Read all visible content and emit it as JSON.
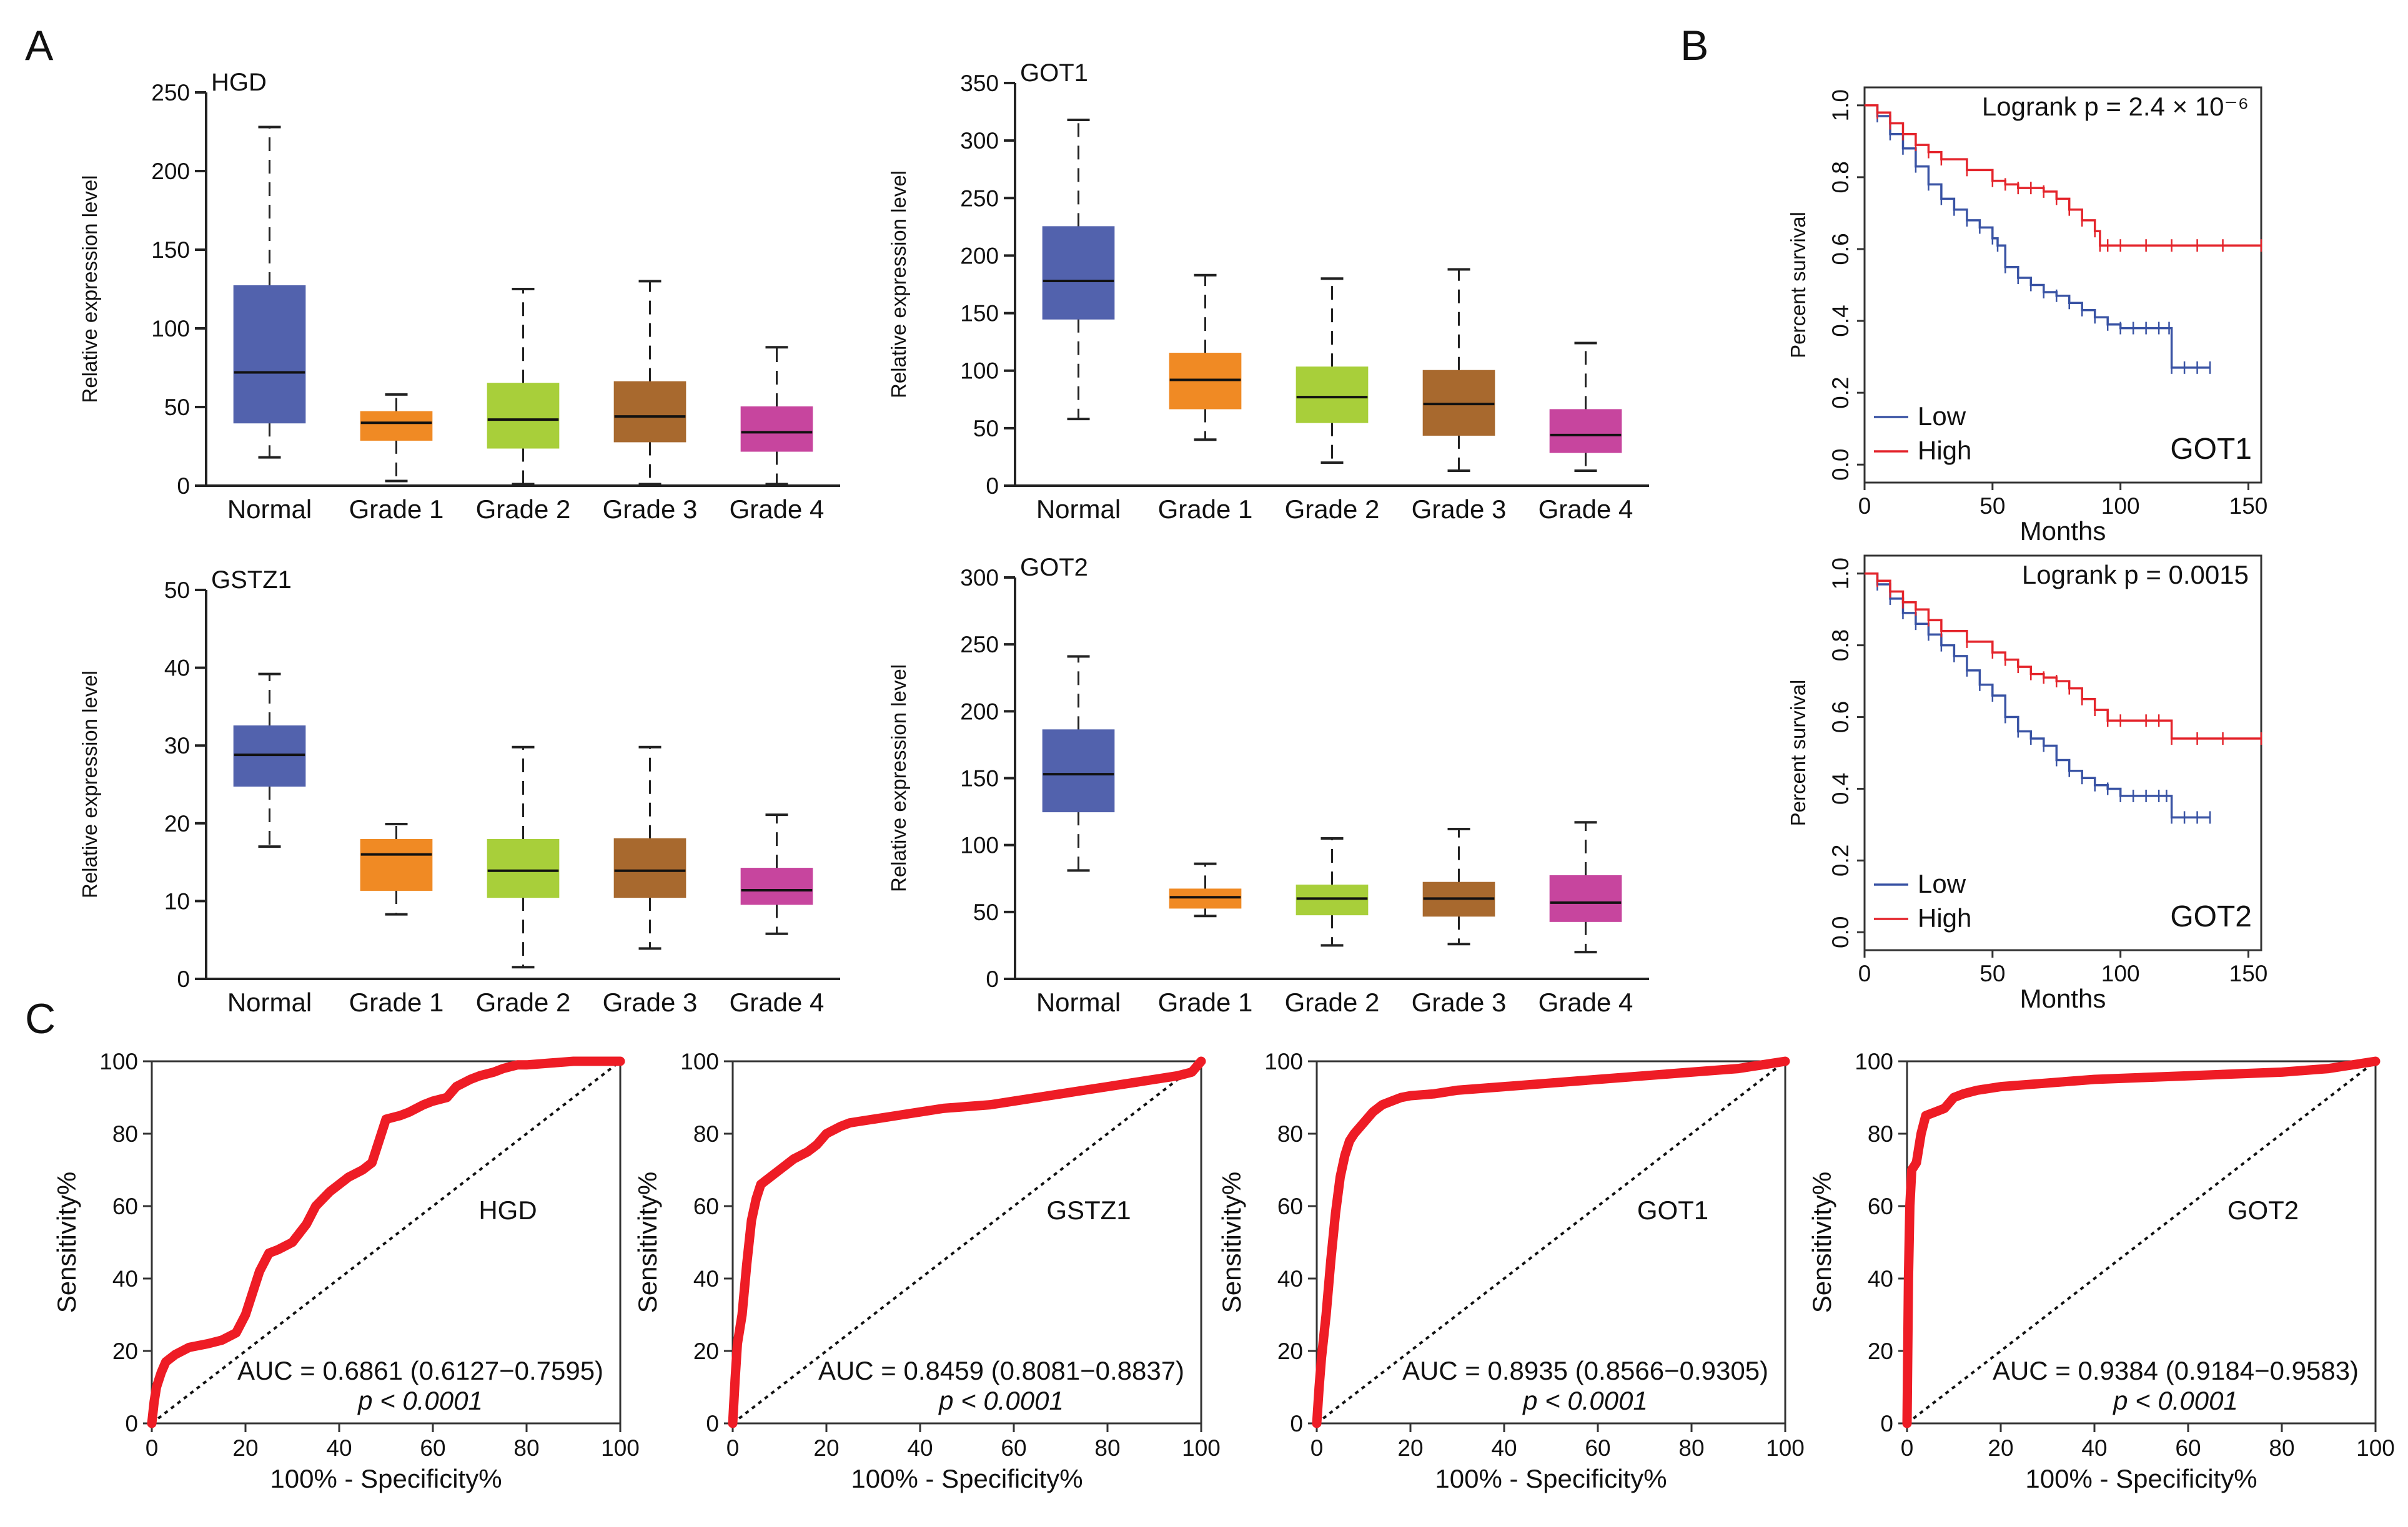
{
  "figure": {
    "panels": {
      "A": "A",
      "B": "B",
      "C": "C"
    }
  },
  "chart_data": [
    {
      "type": "box",
      "id": "boxHGD",
      "title": "HGD",
      "ylabel": "Relative expression level",
      "categories": [
        "Normal",
        "Grade 1",
        "Grade 2",
        "Grade 3",
        "Grade 4"
      ],
      "ylim": [
        0,
        250
      ],
      "yticks": [
        0,
        50,
        100,
        150,
        200,
        250
      ],
      "colors": [
        "#5262ad",
        "#f08a24",
        "#a8cf3a",
        "#a8692e",
        "#c7459e"
      ],
      "boxes": [
        {
          "min": 18,
          "q1": 40,
          "median": 72,
          "q3": 127,
          "max": 228
        },
        {
          "min": 3,
          "q1": 29,
          "median": 40,
          "q3": 47,
          "max": 58
        },
        {
          "min": 1,
          "q1": 24,
          "median": 42,
          "q3": 65,
          "max": 125
        },
        {
          "min": 1,
          "q1": 28,
          "median": 44,
          "q3": 66,
          "max": 130
        },
        {
          "min": 1,
          "q1": 22,
          "median": 34,
          "q3": 50,
          "max": 88
        }
      ]
    },
    {
      "type": "box",
      "id": "boxGOT1",
      "title": "GOT1",
      "ylabel": "Relative expression level",
      "categories": [
        "Normal",
        "Grade 1",
        "Grade 2",
        "Grade 3",
        "Grade 4"
      ],
      "ylim": [
        0,
        350
      ],
      "yticks": [
        0,
        50,
        100,
        150,
        200,
        250,
        300,
        350
      ],
      "colors": [
        "#5262ad",
        "#f08a24",
        "#a8cf3a",
        "#a8692e",
        "#c7459e"
      ],
      "boxes": [
        {
          "min": 58,
          "q1": 145,
          "median": 178,
          "q3": 225,
          "max": 318
        },
        {
          "min": 40,
          "q1": 67,
          "median": 92,
          "q3": 115,
          "max": 183
        },
        {
          "min": 20,
          "q1": 55,
          "median": 77,
          "q3": 103,
          "max": 180
        },
        {
          "min": 13,
          "q1": 44,
          "median": 71,
          "q3": 100,
          "max": 188
        },
        {
          "min": 13,
          "q1": 29,
          "median": 44,
          "q3": 66,
          "max": 124
        }
      ]
    },
    {
      "type": "box",
      "id": "boxGSTZ1",
      "title": "GSTZ1",
      "ylabel": "Relative expression level",
      "categories": [
        "Normal",
        "Grade 1",
        "Grade 2",
        "Grade 3",
        "Grade 4"
      ],
      "ylim": [
        0,
        50
      ],
      "yticks": [
        0,
        10,
        20,
        30,
        40,
        50
      ],
      "colors": [
        "#5262ad",
        "#f08a24",
        "#a8cf3a",
        "#a8692e",
        "#c7459e"
      ],
      "boxes": [
        {
          "min": 17,
          "q1": 24.8,
          "median": 28.8,
          "q3": 32.5,
          "max": 39.2
        },
        {
          "min": 8.3,
          "q1": 11.4,
          "median": 16,
          "q3": 17.9,
          "max": 19.9
        },
        {
          "min": 1.5,
          "q1": 10.5,
          "median": 13.9,
          "q3": 17.9,
          "max": 29.8
        },
        {
          "min": 3.9,
          "q1": 10.5,
          "median": 13.9,
          "q3": 18,
          "max": 29.8
        },
        {
          "min": 5.8,
          "q1": 9.6,
          "median": 11.4,
          "q3": 14.2,
          "max": 21.1
        }
      ]
    },
    {
      "type": "box",
      "id": "boxGOT2",
      "title": "GOT2",
      "ylabel": "Relative expression level",
      "categories": [
        "Normal",
        "Grade 1",
        "Grade 2",
        "Grade 3",
        "Grade 4"
      ],
      "ylim": [
        0,
        300
      ],
      "yticks": [
        0,
        50,
        100,
        150,
        200,
        250,
        300
      ],
      "colors": [
        "#5262ad",
        "#f08a24",
        "#a8cf3a",
        "#a8692e",
        "#c7459e"
      ],
      "boxes": [
        {
          "min": 81,
          "q1": 125,
          "median": 153,
          "q3": 186,
          "max": 241
        },
        {
          "min": 47,
          "q1": 53,
          "median": 61,
          "q3": 67,
          "max": 86
        },
        {
          "min": 25,
          "q1": 48,
          "median": 60,
          "q3": 70,
          "max": 105
        },
        {
          "min": 26,
          "q1": 47,
          "median": 60,
          "q3": 72,
          "max": 112
        },
        {
          "min": 20,
          "q1": 43,
          "median": 57,
          "q3": 77,
          "max": 117
        }
      ]
    },
    {
      "type": "line",
      "id": "kmGOT1",
      "subtype": "kaplan-meier",
      "gene": "GOT1",
      "stat_text": "Logrank p = 2.4 × 10⁻⁶",
      "xlabel": "Months",
      "ylabel": "Percent survival",
      "xlim": [
        0,
        155
      ],
      "ylim": [
        -0.05,
        1.05
      ],
      "xticks": [
        0,
        50,
        100,
        150
      ],
      "yticks": [
        0.0,
        0.2,
        0.4,
        0.6,
        0.8,
        1.0
      ],
      "legend": [
        "Low",
        "High"
      ],
      "legend_position": "bottom-left",
      "series": [
        {
          "name": "Low",
          "color": "#3953a4",
          "x": [
            0,
            5,
            10,
            15,
            20,
            25,
            30,
            35,
            40,
            45,
            50,
            52,
            55,
            60,
            65,
            70,
            75,
            80,
            85,
            90,
            95,
            100,
            105,
            110,
            115,
            119,
            120,
            125,
            130,
            135
          ],
          "y": [
            1.0,
            0.97,
            0.92,
            0.88,
            0.83,
            0.78,
            0.74,
            0.71,
            0.68,
            0.66,
            0.63,
            0.61,
            0.55,
            0.52,
            0.5,
            0.48,
            0.47,
            0.45,
            0.43,
            0.41,
            0.39,
            0.38,
            0.38,
            0.38,
            0.38,
            0.38,
            0.27,
            0.27,
            0.27,
            0.27
          ]
        },
        {
          "name": "High",
          "color": "#e4242b",
          "x": [
            0,
            5,
            10,
            15,
            20,
            25,
            30,
            40,
            50,
            55,
            60,
            65,
            70,
            75,
            80,
            85,
            90,
            92,
            95,
            100,
            110,
            120,
            130,
            140,
            155
          ],
          "y": [
            1.0,
            0.98,
            0.95,
            0.92,
            0.89,
            0.87,
            0.85,
            0.82,
            0.79,
            0.78,
            0.77,
            0.77,
            0.76,
            0.74,
            0.71,
            0.68,
            0.65,
            0.61,
            0.61,
            0.61,
            0.61,
            0.61,
            0.61,
            0.61,
            0.61
          ]
        }
      ]
    },
    {
      "type": "line",
      "id": "kmGOT2",
      "subtype": "kaplan-meier",
      "gene": "GOT2",
      "stat_text": "Logrank p = 0.0015",
      "xlabel": "Months",
      "ylabel": "Percent survival",
      "xlim": [
        0,
        155
      ],
      "ylim": [
        -0.05,
        1.05
      ],
      "xticks": [
        0,
        50,
        100,
        150
      ],
      "yticks": [
        0.0,
        0.2,
        0.4,
        0.6,
        0.8,
        1.0
      ],
      "legend": [
        "Low",
        "High"
      ],
      "legend_position": "bottom-left",
      "series": [
        {
          "name": "Low",
          "color": "#3953a4",
          "x": [
            0,
            5,
            10,
            15,
            20,
            25,
            30,
            35,
            40,
            45,
            50,
            55,
            60,
            65,
            70,
            75,
            80,
            85,
            90,
            95,
            100,
            105,
            110,
            115,
            118,
            120,
            125,
            130,
            135
          ],
          "y": [
            1.0,
            0.97,
            0.93,
            0.89,
            0.86,
            0.83,
            0.8,
            0.77,
            0.73,
            0.69,
            0.66,
            0.6,
            0.56,
            0.54,
            0.52,
            0.48,
            0.45,
            0.43,
            0.41,
            0.4,
            0.38,
            0.38,
            0.38,
            0.38,
            0.38,
            0.32,
            0.32,
            0.32,
            0.32
          ]
        },
        {
          "name": "High",
          "color": "#e4242b",
          "x": [
            0,
            5,
            10,
            15,
            20,
            25,
            30,
            40,
            50,
            55,
            60,
            65,
            70,
            75,
            80,
            85,
            90,
            95,
            100,
            110,
            115,
            120,
            130,
            140,
            155
          ],
          "y": [
            1.0,
            0.98,
            0.95,
            0.92,
            0.9,
            0.87,
            0.84,
            0.81,
            0.78,
            0.76,
            0.74,
            0.72,
            0.71,
            0.7,
            0.68,
            0.65,
            0.62,
            0.59,
            0.59,
            0.59,
            0.59,
            0.54,
            0.54,
            0.54,
            0.54
          ]
        }
      ]
    },
    {
      "type": "line",
      "id": "rocHGD",
      "subtype": "roc",
      "gene": "HGD",
      "auc_text": "AUC = 0.6861 (0.6127−0.7595)",
      "p_text": "p < 0.0001",
      "xlabel": "100% - Specificity%",
      "ylabel": "Sensitivity%",
      "xlim": [
        0,
        100
      ],
      "ylim": [
        0,
        100
      ],
      "xticks": [
        0,
        20,
        40,
        60,
        80,
        100
      ],
      "yticks": [
        0,
        20,
        40,
        60,
        80,
        100
      ],
      "curve_color": "#ee1c25",
      "x": [
        0,
        0.5,
        1,
        2,
        3,
        5,
        8,
        12,
        15,
        18,
        20,
        22,
        23,
        25,
        27,
        30,
        33,
        35,
        38,
        40,
        42,
        45,
        47,
        48,
        49,
        50,
        53,
        55,
        58,
        60,
        63,
        65,
        68,
        70,
        73,
        75,
        78,
        80,
        85,
        90,
        95,
        100
      ],
      "y": [
        0,
        6,
        10,
        14,
        17,
        19,
        21,
        22,
        23,
        25,
        30,
        38,
        42,
        47,
        48,
        50,
        55,
        60,
        64,
        66,
        68,
        70,
        72,
        76,
        80,
        84,
        85,
        86,
        88,
        89,
        90,
        93,
        95,
        96,
        97,
        98,
        99,
        99,
        99.5,
        100,
        100,
        100
      ]
    },
    {
      "type": "line",
      "id": "rocGSTZ1",
      "subtype": "roc",
      "gene": "GSTZ1",
      "auc_text": "AUC = 0.8459 (0.8081−0.8837)",
      "p_text": "p < 0.0001",
      "xlabel": "100% - Specificity%",
      "ylabel": "Sensitivity%",
      "xlim": [
        0,
        100
      ],
      "ylim": [
        0,
        100
      ],
      "xticks": [
        0,
        20,
        40,
        60,
        80,
        100
      ],
      "yticks": [
        0,
        20,
        40,
        60,
        80,
        100
      ],
      "curve_color": "#ee1c25",
      "x": [
        0,
        0.5,
        1,
        2,
        3,
        4,
        5,
        6,
        8,
        10,
        13,
        16,
        18,
        20,
        23,
        25,
        30,
        35,
        40,
        45,
        50,
        55,
        60,
        65,
        70,
        75,
        80,
        85,
        90,
        95,
        98,
        100
      ],
      "y": [
        0,
        12,
        22,
        30,
        44,
        56,
        62,
        66,
        68,
        70,
        73,
        75,
        77,
        80,
        82,
        83,
        84,
        85,
        86,
        87,
        87.5,
        88,
        89,
        90,
        91,
        92,
        93,
        94,
        95,
        96,
        97,
        100
      ]
    },
    {
      "type": "line",
      "id": "rocGOT1",
      "subtype": "roc",
      "gene": "GOT1",
      "auc_text": "AUC = 0.8935 (0.8566−0.9305)",
      "p_text": "p < 0.0001",
      "xlabel": "100% - Specificity%",
      "ylabel": "Sensitivity%",
      "xlim": [
        0,
        100
      ],
      "ylim": [
        0,
        100
      ],
      "xticks": [
        0,
        20,
        40,
        60,
        80,
        100
      ],
      "yticks": [
        0,
        20,
        40,
        60,
        80,
        100
      ],
      "curve_color": "#ee1c25",
      "x": [
        0,
        0.5,
        1,
        2,
        3,
        4,
        5,
        6,
        7,
        8,
        10,
        12,
        14,
        16,
        18,
        20,
        25,
        30,
        40,
        50,
        60,
        70,
        80,
        90,
        95,
        100
      ],
      "y": [
        0,
        10,
        18,
        30,
        45,
        58,
        68,
        74,
        78,
        80,
        83,
        86,
        88,
        89,
        90,
        90.5,
        91,
        92,
        93,
        94,
        95,
        96,
        97,
        98,
        99,
        100
      ]
    },
    {
      "type": "line",
      "id": "rocGOT2",
      "subtype": "roc",
      "gene": "GOT2",
      "auc_text": "AUC = 0.9384 (0.9184−0.9583)",
      "p_text": "p < 0.0001",
      "xlabel": "100% - Specificity%",
      "ylabel": "Sensitivity%",
      "xlim": [
        0,
        100
      ],
      "ylim": [
        0,
        100
      ],
      "xticks": [
        0,
        20,
        40,
        60,
        80,
        100
      ],
      "yticks": [
        0,
        20,
        40,
        60,
        80,
        100
      ],
      "curve_color": "#ee1c25",
      "x": [
        0,
        0.3,
        0.6,
        1,
        2,
        3,
        4,
        6,
        8,
        10,
        12,
        15,
        20,
        30,
        40,
        50,
        60,
        70,
        80,
        90,
        100
      ],
      "y": [
        0,
        40,
        60,
        70,
        72,
        80,
        85,
        86,
        87,
        90,
        91,
        92,
        93,
        94,
        95,
        95.5,
        96,
        96.5,
        97,
        98,
        100
      ]
    }
  ]
}
